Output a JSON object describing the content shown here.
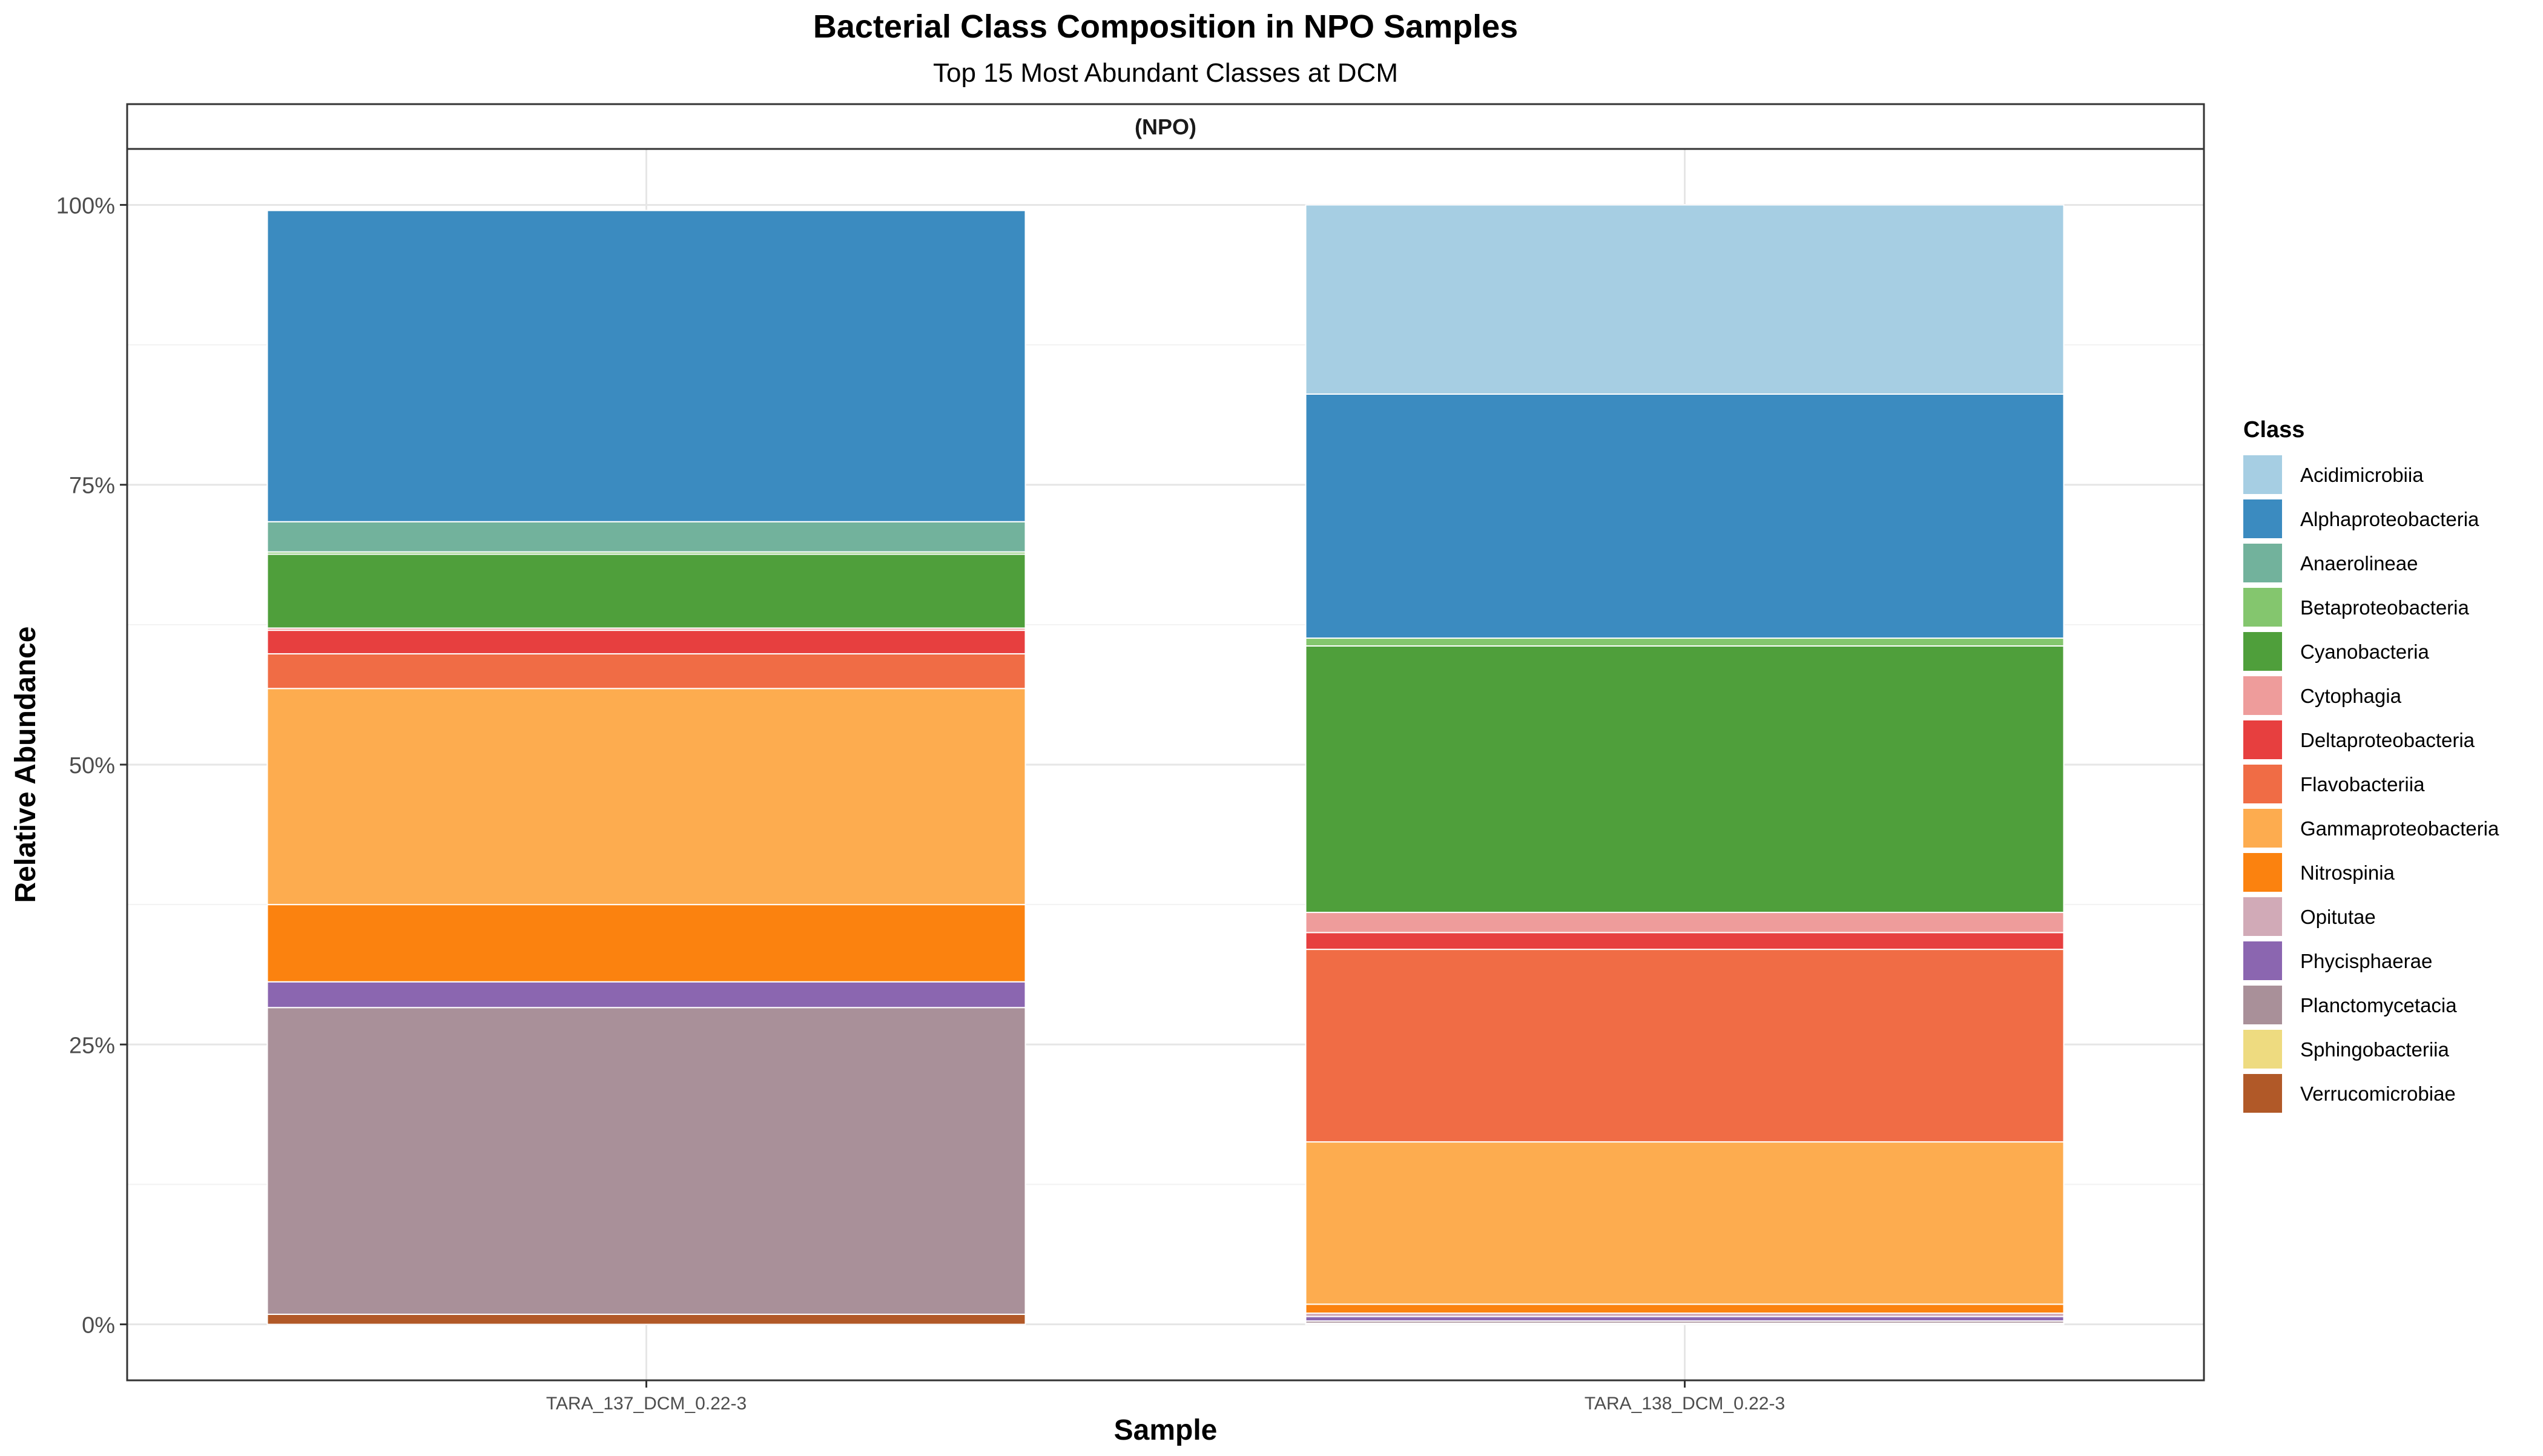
{
  "chart_data": {
    "type": "bar",
    "stacked": true,
    "title": "Bacterial Class Composition in NPO Samples",
    "subtitle": "Top 15 Most Abundant Classes at DCM",
    "facet_label": "(NPO)",
    "xlabel": "Sample",
    "ylabel": "Relative Abundance",
    "ylim": [
      -0.05,
      1.05
    ],
    "y_ticks": [
      0,
      0.25,
      0.5,
      0.75,
      1.0
    ],
    "y_tick_labels": [
      "0%",
      "25%",
      "50%",
      "75%",
      "100%"
    ],
    "grid": true,
    "legend_position": "right",
    "legend_title": "Class",
    "categories": [
      "TARA_137_DCM_0.22-3",
      "TARA_138_DCM_0.22-3"
    ],
    "series": [
      {
        "name": "Acidimicrobiia",
        "color": "#A6CEE3",
        "values": [
          0,
          0.169
        ]
      },
      {
        "name": "Alphaproteobacteria",
        "color": "#3B8BC0",
        "values": [
          0.278,
          0.218
        ]
      },
      {
        "name": "Anaerolineae",
        "color": "#72B29C",
        "values": [
          0.027,
          0
        ]
      },
      {
        "name": "Betaproteobacteria",
        "color": "#84C66E",
        "values": [
          0.002,
          0.007
        ]
      },
      {
        "name": "Cyanobacteria",
        "color": "#4F9F3B",
        "values": [
          0.066,
          0.238
        ]
      },
      {
        "name": "Cytophagia",
        "color": "#EE9C9B",
        "values": [
          0.002,
          0.018
        ]
      },
      {
        "name": "Deltaproteobacteria",
        "color": "#E73F3F",
        "values": [
          0.021,
          0.015
        ]
      },
      {
        "name": "Flavobacteriia",
        "color": "#F06C45",
        "values": [
          0.031,
          0.172
        ]
      },
      {
        "name": "Gammaproteobacteria",
        "color": "#FDAC4F",
        "values": [
          0.193,
          0.145
        ]
      },
      {
        "name": "Nitrospinia",
        "color": "#FB820F",
        "values": [
          0.069,
          0.008
        ]
      },
      {
        "name": "Opitutae",
        "color": "#D1AAB7",
        "values": [
          0,
          0.003
        ]
      },
      {
        "name": "Phycisphaerae",
        "color": "#8B66B0",
        "values": [
          0.023,
          0.004
        ]
      },
      {
        "name": "Planctomycetacia",
        "color": "#A99099",
        "values": [
          0.274,
          0.002
        ]
      },
      {
        "name": "Sphingobacteriia",
        "color": "#EEDB80",
        "values": [
          0,
          0
        ]
      },
      {
        "name": "Verrucomicrobiae",
        "color": "#B15928",
        "values": [
          0.009,
          0.001
        ]
      }
    ]
  }
}
